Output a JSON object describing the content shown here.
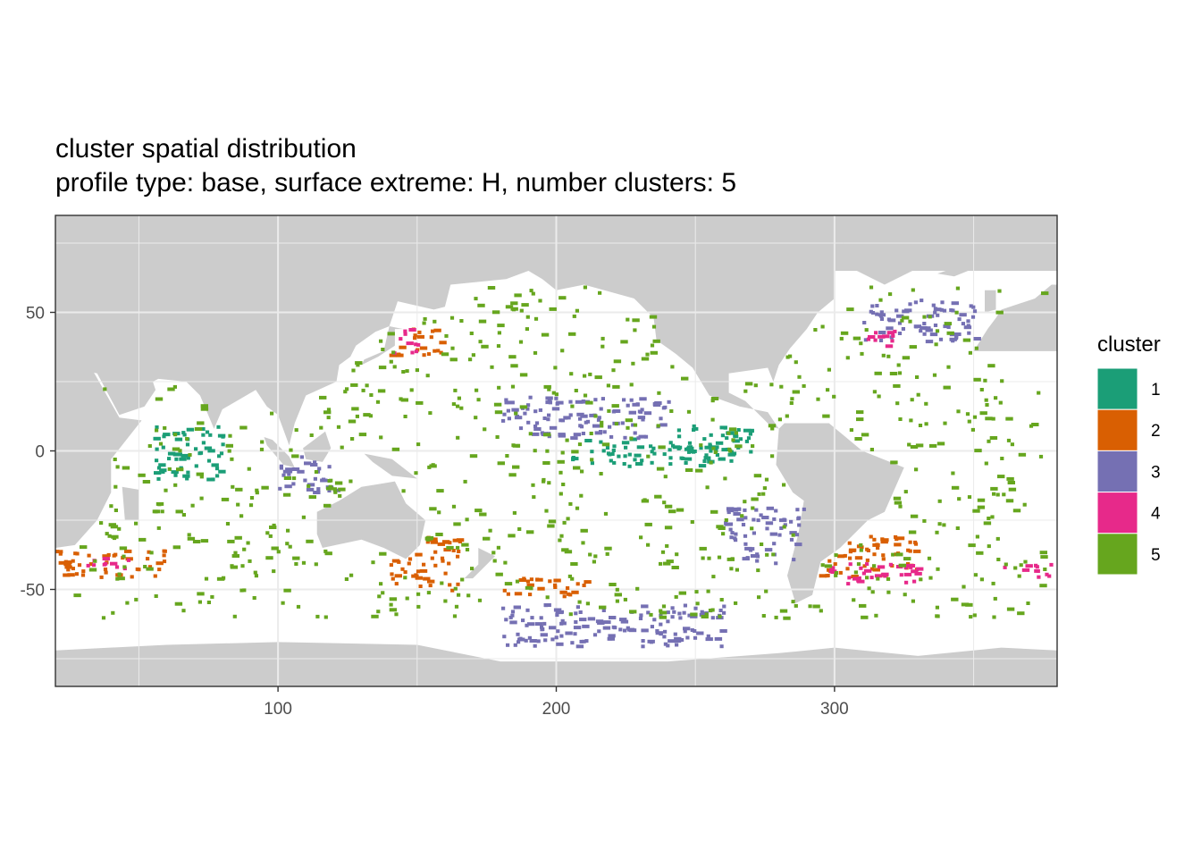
{
  "chart_data": {
    "type": "heatmap",
    "title": "cluster spatial distribution",
    "subtitle": "profile type: base, surface extreme: H, number clusters: 5",
    "xlabel": "",
    "ylabel": "",
    "x_ticks": [
      "100",
      "200",
      "300"
    ],
    "y_ticks": [
      "50",
      "0",
      "-50"
    ],
    "x_tick_values": [
      100,
      200,
      300
    ],
    "y_tick_values": [
      50,
      0,
      -50
    ],
    "xlim": [
      20,
      380
    ],
    "ylim": [
      -85,
      85
    ],
    "grid": true,
    "legend": {
      "title": "cluster",
      "placement": "right",
      "entries": [
        {
          "label": "1",
          "color": "#1B9E77"
        },
        {
          "label": "2",
          "color": "#D95F02"
        },
        {
          "label": "3",
          "color": "#7570B3"
        },
        {
          "label": "4",
          "color": "#E7298A"
        },
        {
          "label": "5",
          "color": "#66A61E"
        }
      ]
    },
    "land_color": "#CCCCCC",
    "regions": [
      {
        "cluster": "1",
        "lon": [
          205,
          265
        ],
        "lat": [
          -5,
          5
        ]
      },
      {
        "cluster": "1",
        "lon": [
          240,
          270
        ],
        "lat": [
          0,
          10
        ]
      },
      {
        "cluster": "1",
        "lon": [
          55,
          80
        ],
        "lat": [
          -10,
          10
        ]
      },
      {
        "cluster": "2",
        "lon": [
          180,
          210
        ],
        "lat": [
          -52,
          -45
        ]
      },
      {
        "cluster": "2",
        "lon": [
          140,
          165
        ],
        "lat": [
          -50,
          -30
        ]
      },
      {
        "cluster": "2",
        "lon": [
          140,
          160
        ],
        "lat": [
          35,
          45
        ]
      },
      {
        "cluster": "2",
        "lon": [
          290,
          330
        ],
        "lat": [
          -45,
          -30
        ]
      },
      {
        "cluster": "2",
        "lon": [
          20,
          60
        ],
        "lat": [
          -45,
          -35
        ]
      },
      {
        "cluster": "3",
        "lon": [
          180,
          260
        ],
        "lat": [
          -70,
          -55
        ]
      },
      {
        "cluster": "3",
        "lon": [
          180,
          240
        ],
        "lat": [
          5,
          20
        ]
      },
      {
        "cluster": "3",
        "lon": [
          100,
          120
        ],
        "lat": [
          -15,
          0
        ]
      },
      {
        "cluster": "3",
        "lon": [
          310,
          350
        ],
        "lat": [
          40,
          55
        ]
      },
      {
        "cluster": "3",
        "lon": [
          260,
          290
        ],
        "lat": [
          -40,
          -20
        ]
      },
      {
        "cluster": "4",
        "lon": [
          140,
          150
        ],
        "lat": [
          35,
          45
        ]
      },
      {
        "cluster": "4",
        "lon": [
          295,
          330
        ],
        "lat": [
          -48,
          -40
        ]
      },
      {
        "cluster": "4",
        "lon": [
          310,
          325
        ],
        "lat": [
          38,
          44
        ]
      },
      {
        "cluster": "4",
        "lon": [
          360,
          378
        ],
        "lat": [
          -45,
          -40
        ]
      },
      {
        "cluster": "4",
        "lon": [
          30,
          50
        ],
        "lat": [
          -42,
          -38
        ]
      },
      {
        "cluster": "5",
        "lon": [
          25,
          375
        ],
        "lat": [
          -60,
          60
        ]
      }
    ]
  }
}
